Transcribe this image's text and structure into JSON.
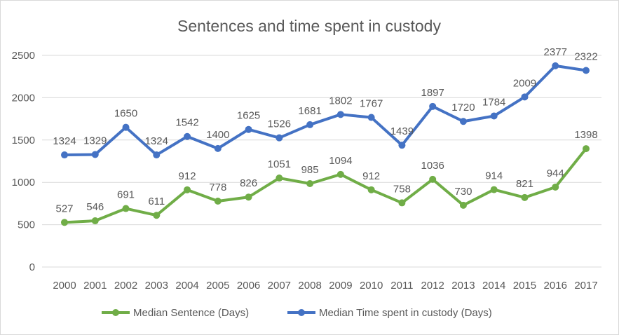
{
  "chart_data": {
    "type": "line",
    "title": "Sentences and time spent in custody",
    "xlabel": "",
    "ylabel": "",
    "ylim": [
      0,
      2500
    ],
    "yticks": [
      0,
      500,
      1000,
      1500,
      2000,
      2500
    ],
    "grid": true,
    "legend_position": "bottom",
    "x": [
      "2000",
      "2001",
      "2002",
      "2003",
      "2004",
      "2005",
      "2006",
      "2007",
      "2008",
      "2009",
      "2010",
      "2011",
      "2012",
      "2013",
      "2014",
      "2015",
      "2016",
      "2017"
    ],
    "series": [
      {
        "name": "Median Sentence (Days)",
        "color": "#70AD47",
        "values": [
          527,
          546,
          691,
          611,
          912,
          778,
          826,
          1051,
          985,
          1094,
          912,
          758,
          1036,
          730,
          914,
          821,
          944,
          1398
        ]
      },
      {
        "name": "Median Time spent in custody (Days)",
        "color": "#4472C4",
        "values": [
          1324,
          1329,
          1650,
          1324,
          1542,
          1400,
          1625,
          1526,
          1681,
          1802,
          1767,
          1439,
          1897,
          1720,
          1784,
          2009,
          2377,
          2322
        ]
      }
    ]
  }
}
